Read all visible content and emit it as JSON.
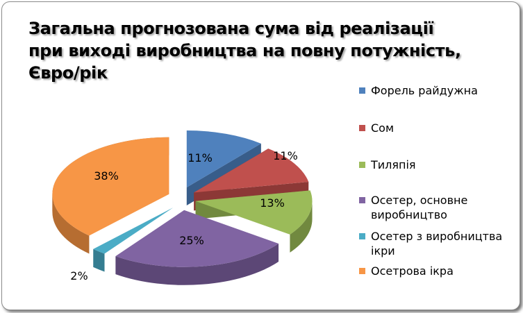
{
  "chart_data": {
    "type": "pie",
    "title_lines": [
      "Загальна прогнозована сума від реалізації",
      "при виході виробництва на повну потужність,",
      "Євро/рік"
    ],
    "slices": [
      {
        "name": "Форель райдужна",
        "value": 11,
        "label": "11%",
        "color": "#4f81bd",
        "side": "#385d8a"
      },
      {
        "name": "Сом",
        "value": 11,
        "label": "11%",
        "color": "#c0504d",
        "side": "#8c3836"
      },
      {
        "name": "Тиляпія",
        "value": 13,
        "label": "13%",
        "color": "#9bbb59",
        "side": "#71893f"
      },
      {
        "name": "Осетер, основне виробництво",
        "value": 25,
        "label": "25%",
        "color": "#8064a2",
        "side": "#5c4776"
      },
      {
        "name": "Осетер з виробництва ікри",
        "value": 2,
        "label": "2%",
        "color": "#4bacc6",
        "side": "#357d91"
      },
      {
        "name": "Осетрова ікра",
        "value": 38,
        "label": "38%",
        "color": "#f79646",
        "side": "#b66d31"
      }
    ],
    "legend": {
      "position": "right"
    }
  }
}
